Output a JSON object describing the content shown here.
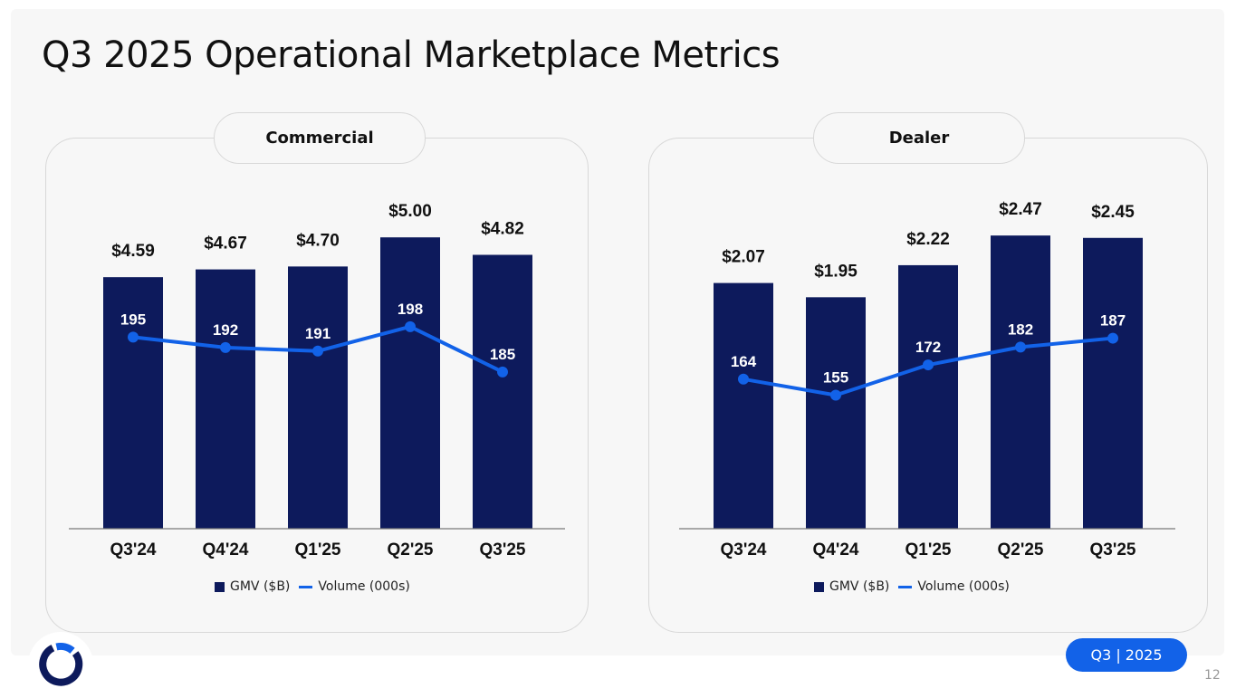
{
  "slide": {
    "title": "Q3 2025 Operational Marketplace Metrics",
    "badge": "Q3 | 2025",
    "page_number": "12"
  },
  "colors": {
    "bar": "#0d1a5c",
    "line": "#1262e8",
    "badge": "#1262e8",
    "logo_dark": "#0d1a5c",
    "logo_blue": "#1262e8"
  },
  "legend": {
    "bar_label": "GMV ($B)",
    "line_label": "Volume (000s)"
  },
  "chart_data": [
    {
      "type": "bar",
      "title": "Commercial",
      "categories": [
        "Q3'24",
        "Q4'24",
        "Q1'25",
        "Q2'25",
        "Q3'25"
      ],
      "series": [
        {
          "name": "GMV ($B)",
          "type": "bar",
          "values": [
            4.59,
            4.67,
            4.7,
            5.0,
            4.82
          ],
          "labels": [
            "$4.59",
            "$4.67",
            "$4.70",
            "$5.00",
            "$4.82"
          ]
        },
        {
          "name": "Volume (000s)",
          "type": "line",
          "values": [
            195,
            192,
            191,
            198,
            185
          ],
          "labels": [
            "195",
            "192",
            "191",
            "198",
            "185"
          ]
        }
      ],
      "bar_ylim": [
        2.0,
        5.3
      ],
      "line_ylim": [
        140,
        232
      ]
    },
    {
      "type": "bar",
      "title": "Dealer",
      "categories": [
        "Q3'24",
        "Q4'24",
        "Q1'25",
        "Q2'25",
        "Q3'25"
      ],
      "series": [
        {
          "name": "GMV ($B)",
          "type": "bar",
          "values": [
            2.07,
            1.95,
            2.22,
            2.47,
            2.45
          ],
          "labels": [
            "$2.07",
            "$1.95",
            "$2.22",
            "$2.47",
            "$2.45"
          ]
        },
        {
          "name": "Volume (000s)",
          "type": "line",
          "values": [
            164,
            155,
            172,
            182,
            187
          ],
          "labels": [
            "164",
            "155",
            "172",
            "182",
            "187"
          ]
        }
      ],
      "bar_ylim": [
        0.0,
        2.7
      ],
      "line_ylim": [
        80,
        260
      ]
    }
  ]
}
